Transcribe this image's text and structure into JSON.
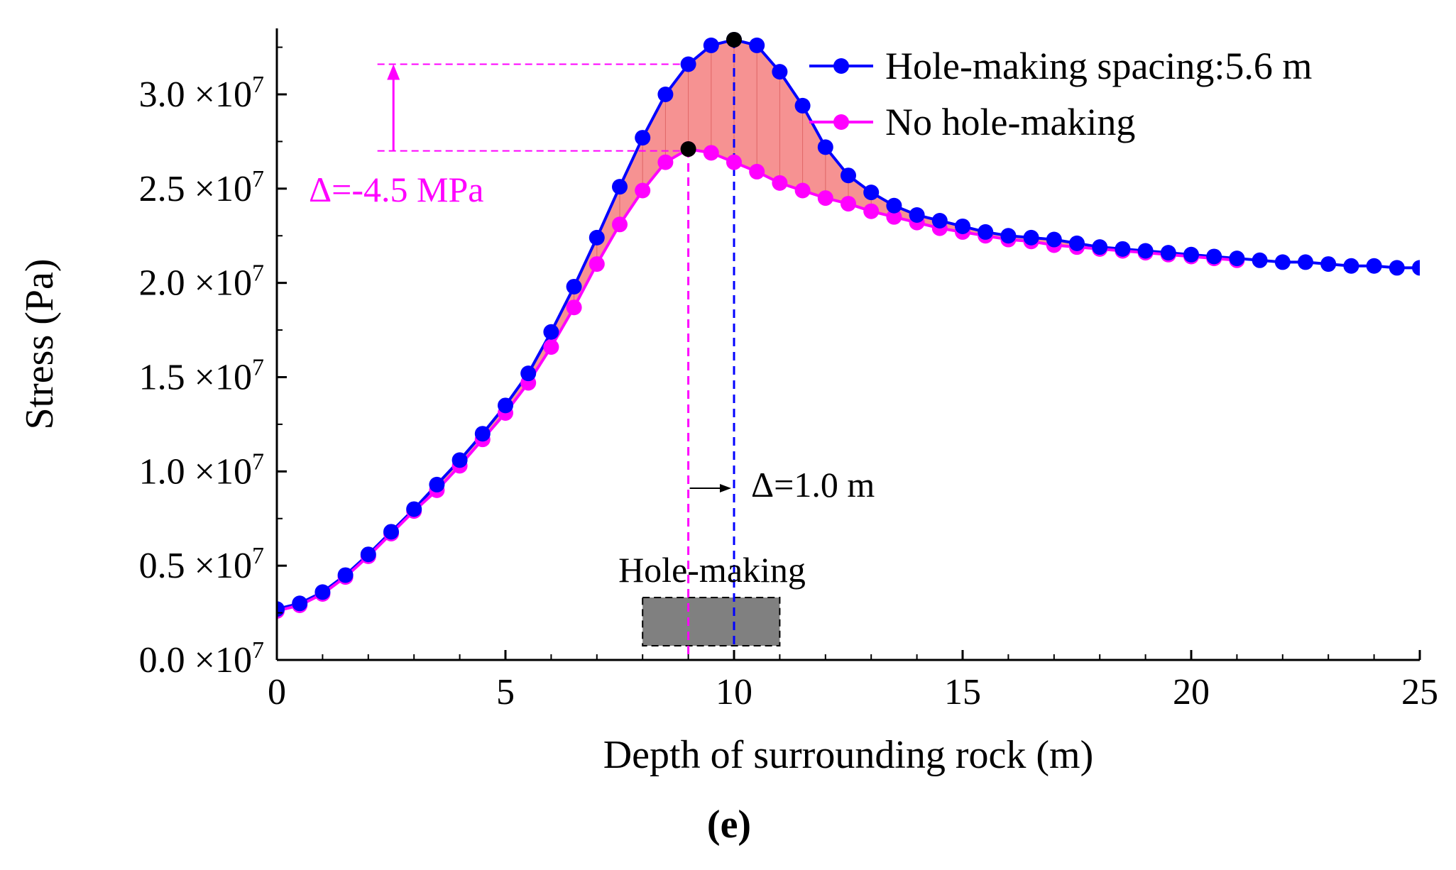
{
  "chart_data": {
    "type": "line",
    "x_label": "Depth of surrounding rock (m)",
    "y_label": "Stress (Pa)",
    "xlim": [
      0,
      25
    ],
    "ylim": [
      0,
      33500000
    ],
    "x_ticks": [
      0,
      5,
      10,
      15,
      20,
      25
    ],
    "x_tick_labels": [
      "0",
      "5",
      "10",
      "15",
      "20",
      "25"
    ],
    "y_ticks": [
      0,
      5000000,
      10000000,
      15000000,
      20000000,
      25000000,
      30000000
    ],
    "y_tick_mantissas": [
      "0.0",
      "0.5",
      "1.0",
      "1.5",
      "2.0",
      "2.5",
      "3.0"
    ],
    "y_tick_multiplier": "×10",
    "y_tick_exponent": "7",
    "series": [
      {
        "name": "Hole-making spacing:5.6 m",
        "color": "#0000ff",
        "x": [
          0,
          0.5,
          1,
          1.5,
          2,
          2.5,
          3,
          3.5,
          4,
          4.5,
          5,
          5.5,
          6,
          6.5,
          7,
          7.5,
          8,
          8.5,
          9,
          9.5,
          10,
          10.5,
          11,
          11.5,
          12,
          12.5,
          13,
          13.5,
          14,
          14.5,
          15,
          15.5,
          16,
          16.5,
          17,
          17.5,
          18,
          18.5,
          19,
          19.5,
          20,
          20.5,
          21,
          21.5,
          22,
          22.5,
          23,
          23.5,
          24,
          24.5,
          25
        ],
        "values": [
          2700000,
          3000000,
          3600000,
          4500000,
          5600000,
          6800000,
          8000000,
          9300000,
          10600000,
          12000000,
          13500000,
          15200000,
          17400000,
          19800000,
          22400000,
          25100000,
          27700000,
          30000000,
          31600000,
          32600000,
          32900000,
          32600000,
          31200000,
          29400000,
          27200000,
          25700000,
          24800000,
          24100000,
          23600000,
          23300000,
          23000000,
          22700000,
          22500000,
          22400000,
          22300000,
          22100000,
          21900000,
          21800000,
          21700000,
          21600000,
          21500000,
          21400000,
          21300000,
          21200000,
          21100000,
          21100000,
          21000000,
          20900000,
          20900000,
          20800000,
          20800000
        ]
      },
      {
        "name": "No hole-making",
        "color": "#ff00ff",
        "x": [
          0,
          0.5,
          1,
          1.5,
          2,
          2.5,
          3,
          3.5,
          4,
          4.5,
          5,
          5.5,
          6,
          6.5,
          7,
          7.5,
          8,
          8.5,
          9,
          9.5,
          10,
          10.5,
          11,
          11.5,
          12,
          12.5,
          13,
          13.5,
          14,
          14.5,
          15,
          15.5,
          16,
          16.5,
          17,
          17.5,
          18,
          18.5,
          19,
          19.5,
          20,
          20.5,
          21
        ],
        "values": [
          2600000,
          2900000,
          3500000,
          4400000,
          5500000,
          6700000,
          7900000,
          9000000,
          10300000,
          11700000,
          13100000,
          14700000,
          16600000,
          18700000,
          21000000,
          23100000,
          24900000,
          26400000,
          27100000,
          26900000,
          26400000,
          25900000,
          25300000,
          24900000,
          24500000,
          24200000,
          23800000,
          23500000,
          23200000,
          22900000,
          22700000,
          22500000,
          22300000,
          22200000,
          22000000,
          21900000,
          21800000,
          21700000,
          21600000,
          21500000,
          21400000,
          21300000,
          21200000
        ]
      }
    ],
    "fill_between_color": "#f47f7f",
    "hole_region": {
      "x_start": 8,
      "x_end": 11,
      "label": "Hole-making",
      "color": "#808080"
    },
    "peaks": {
      "no_hole": {
        "x": 9,
        "y": 27100000
      },
      "hole": {
        "x": 10,
        "y": 32900000
      }
    },
    "annotations": {
      "stress_delta": "Δ=-4.5 MPa",
      "depth_delta": "Δ=1.0 m",
      "stress_ref_upper": 31600000,
      "stress_ref_lower": 27000000,
      "stress_ref_x_start": 2.2
    },
    "panel_label": "(e)"
  }
}
